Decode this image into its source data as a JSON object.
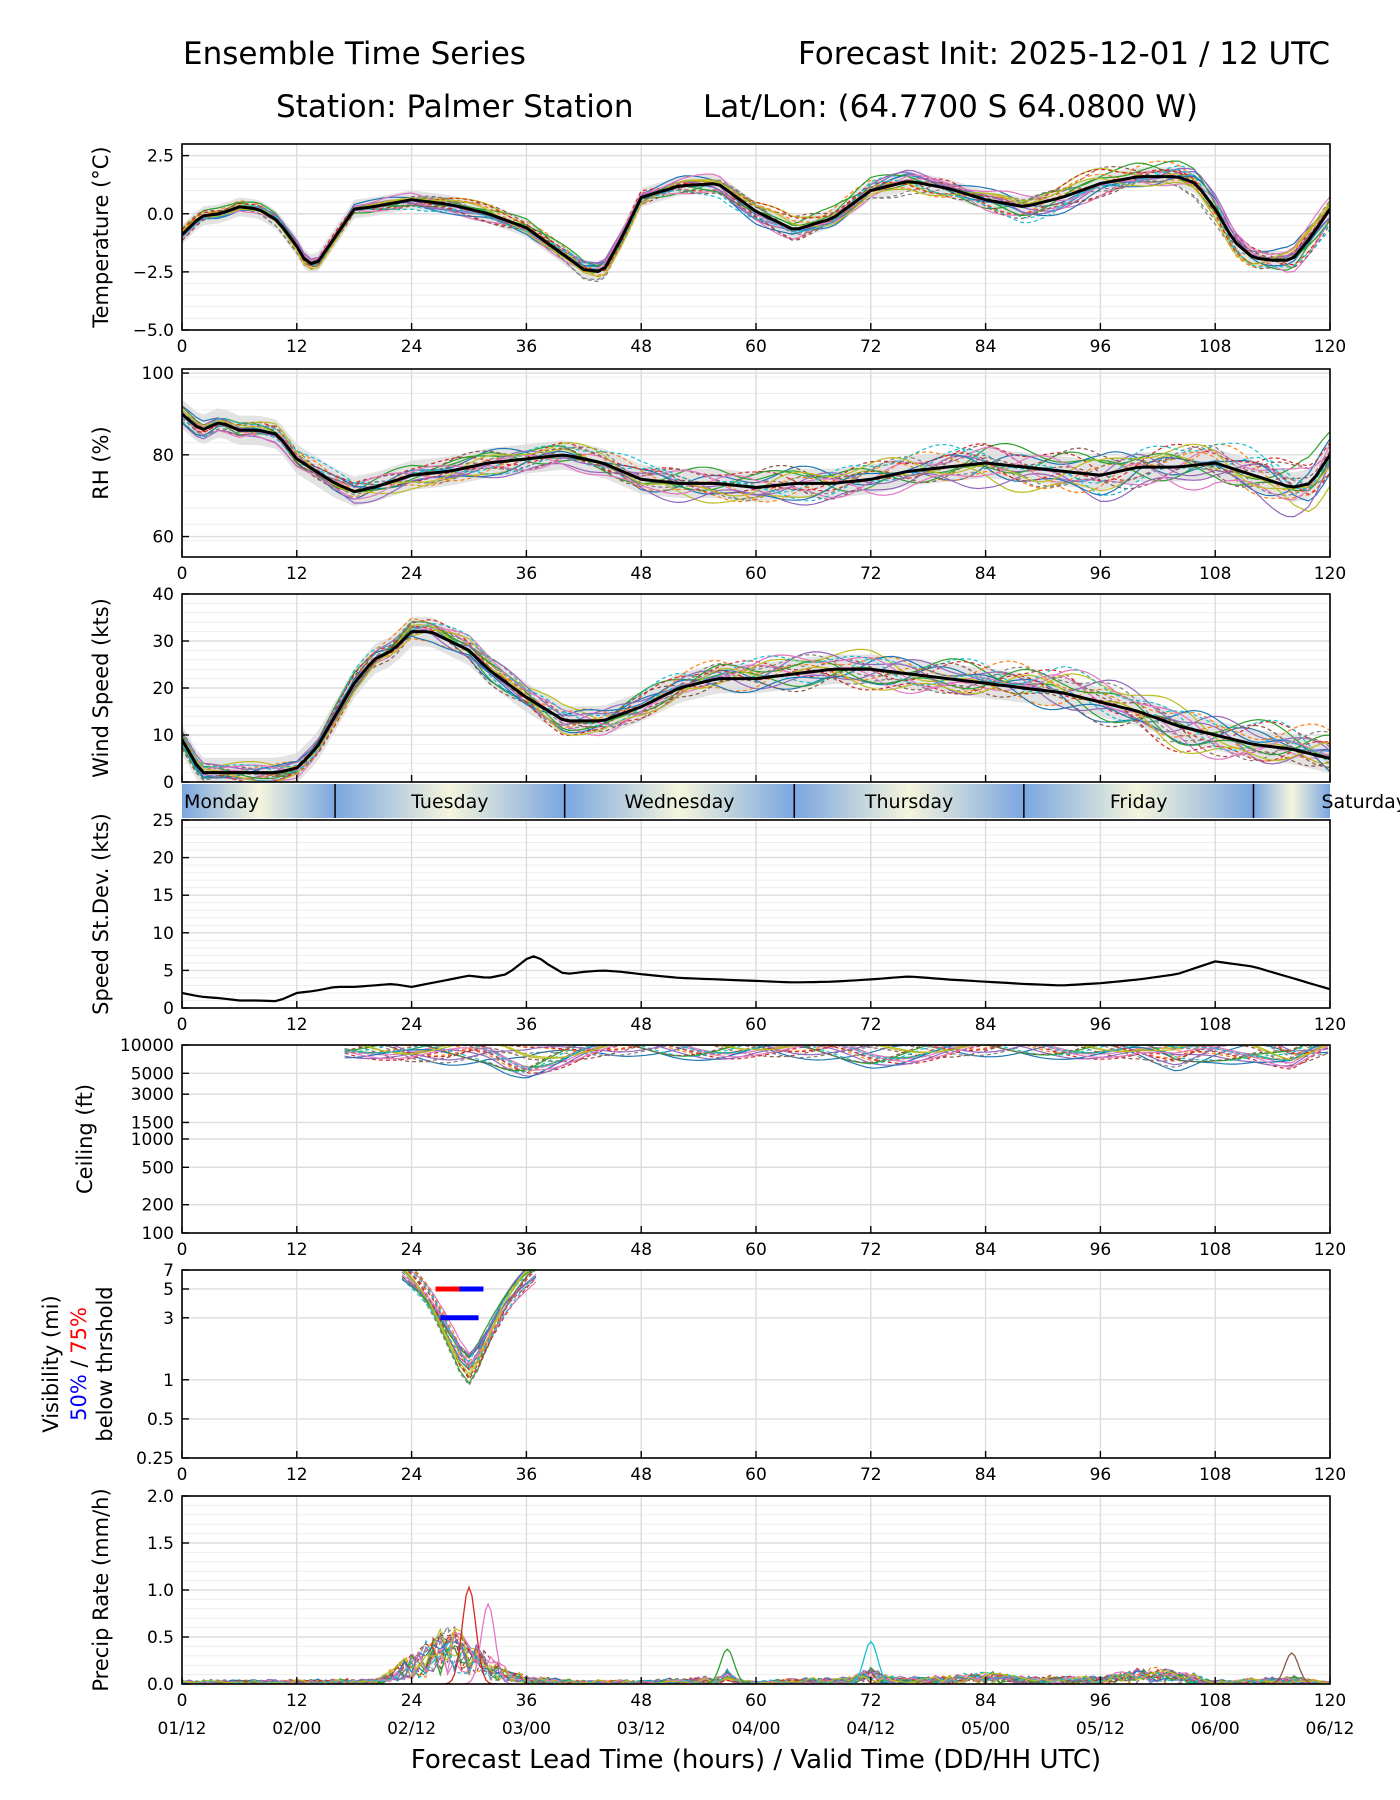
{
  "header": {
    "title_left": "Ensemble Time Series",
    "title_right": "Forecast Init: 2025-12-01 / 12 UTC",
    "station": "Station: Palmer Station",
    "latlon": "Lat/Lon: (64.7700 S 64.0800 W)"
  },
  "xaxis": {
    "label": "Forecast Lead Time (hours) / Valid Time (DD/HH UTC)",
    "lead_ticks": [
      "0",
      "12",
      "24",
      "36",
      "48",
      "60",
      "72",
      "84",
      "96",
      "108",
      "120"
    ],
    "valid_ticks": [
      "01/12",
      "02/00",
      "02/12",
      "03/00",
      "03/12",
      "04/00",
      "04/12",
      "05/00",
      "05/12",
      "06/00",
      "06/12"
    ]
  },
  "day_band": {
    "days": [
      {
        "label": "Monday",
        "start_h": 0,
        "end_h": 16
      },
      {
        "label": "Tuesday",
        "start_h": 16,
        "end_h": 40
      },
      {
        "label": "Wednesday",
        "start_h": 40,
        "end_h": 64
      },
      {
        "label": "Thursday",
        "start_h": 64,
        "end_h": 88
      },
      {
        "label": "Friday",
        "start_h": 88,
        "end_h": 112
      },
      {
        "label": "Saturday",
        "start_h": 112,
        "end_h": 120
      }
    ]
  },
  "vis_label": {
    "line1": "Visibility (mi)",
    "pct50": "50%",
    "sep": " / ",
    "pct75": "75%",
    "line3": "below thrshold"
  },
  "colors": {
    "mean": "#000000",
    "spread": "#d9d9d9",
    "members": [
      "#1f77b4",
      "#ff7f0e",
      "#2ca02c",
      "#d62728",
      "#9467bd",
      "#8c564b",
      "#e377c2",
      "#7f7f7f",
      "#bcbd22",
      "#17becf"
    ],
    "day_blue": "#7aa6e0",
    "day_cream": "#f5f5dc",
    "vis50": "#0000ff",
    "vis75": "#ff0000"
  },
  "chart_data": [
    {
      "type": "line",
      "panel": "temperature",
      "ylabel": "Temperature (°C)",
      "ylim": [
        -5.0,
        3.0
      ],
      "yticks": [
        "2.5",
        "0.0",
        "−2.5",
        "−5.0"
      ],
      "ytick_values": [
        2.5,
        0.0,
        -2.5,
        -5.0
      ],
      "scale": "linear",
      "has_spread": true,
      "n_members": 20,
      "mean_width": 3,
      "x": [
        0,
        2,
        4,
        6,
        8,
        10,
        12,
        13,
        14,
        16,
        18,
        20,
        24,
        28,
        32,
        36,
        40,
        42,
        44,
        46,
        48,
        52,
        56,
        60,
        64,
        68,
        72,
        76,
        80,
        84,
        88,
        92,
        96,
        100,
        104,
        106,
        108,
        110,
        112,
        114,
        116,
        118,
        120
      ],
      "mean": [
        -0.9,
        -0.1,
        0.0,
        0.3,
        0.2,
        -0.3,
        -1.4,
        -2.1,
        -2.2,
        -1.0,
        0.2,
        0.3,
        0.6,
        0.4,
        0.0,
        -0.6,
        -1.8,
        -2.4,
        -2.5,
        -1.0,
        0.7,
        1.2,
        1.3,
        0.1,
        -0.7,
        -0.2,
        1.0,
        1.4,
        1.1,
        0.6,
        0.3,
        0.7,
        1.3,
        1.6,
        1.6,
        1.3,
        0.2,
        -1.2,
        -1.9,
        -2.0,
        -2.0,
        -1.0,
        0.2
      ],
      "member_noise": 0.45
    },
    {
      "type": "line",
      "panel": "rh",
      "ylabel": "RH (%)",
      "ylim": [
        55,
        101
      ],
      "yticks": [
        "100",
        "80",
        "60"
      ],
      "ytick_values": [
        100,
        80,
        60
      ],
      "scale": "linear",
      "has_spread": true,
      "n_members": 20,
      "mean_width": 3,
      "x": [
        0,
        2,
        4,
        6,
        8,
        10,
        12,
        14,
        16,
        18,
        20,
        24,
        28,
        32,
        36,
        40,
        44,
        48,
        52,
        56,
        60,
        64,
        68,
        72,
        76,
        80,
        84,
        88,
        92,
        96,
        100,
        104,
        108,
        112,
        116,
        118,
        120
      ],
      "mean": [
        90,
        86,
        88,
        86,
        86,
        85,
        79,
        76,
        73,
        71,
        72,
        75,
        76,
        78,
        79,
        80,
        78,
        74,
        73,
        73,
        72,
        73,
        73,
        74,
        76,
        77,
        78,
        77,
        76,
        75,
        77,
        77,
        78,
        75,
        72,
        73,
        80
      ],
      "member_noise": 4.0
    },
    {
      "type": "line",
      "panel": "wind",
      "ylabel": "Wind Speed (kts)",
      "ylim": [
        0,
        40
      ],
      "yticks": [
        "40",
        "30",
        "20",
        "10",
        "0"
      ],
      "ytick_values": [
        40,
        30,
        20,
        10,
        0
      ],
      "scale": "linear",
      "has_spread": true,
      "n_members": 20,
      "mean_width": 3,
      "x": [
        0,
        2,
        4,
        6,
        8,
        10,
        12,
        14,
        16,
        18,
        20,
        22,
        24,
        26,
        28,
        30,
        32,
        36,
        40,
        44,
        48,
        52,
        56,
        60,
        64,
        68,
        72,
        76,
        80,
        84,
        88,
        92,
        96,
        100,
        104,
        108,
        112,
        116,
        120
      ],
      "mean": [
        9,
        2,
        2,
        2,
        2,
        2,
        3,
        7,
        14,
        21,
        26,
        28,
        32,
        32,
        30,
        28,
        24,
        18,
        13,
        13,
        16,
        20,
        22,
        22,
        23,
        24,
        24,
        23,
        22,
        21,
        20,
        19,
        17,
        15,
        12,
        10,
        8,
        7,
        5
      ],
      "member_noise": 3.5
    },
    {
      "type": "line",
      "panel": "speed_stdev",
      "ylabel": "Speed St.Dev. (kts)",
      "ylim": [
        0,
        25
      ],
      "yticks": [
        "25",
        "20",
        "15",
        "10",
        "5",
        "0"
      ],
      "ytick_values": [
        25,
        20,
        15,
        10,
        5,
        0
      ],
      "scale": "linear",
      "has_spread": false,
      "n_members": 0,
      "mean_width": 2.2,
      "x": [
        0,
        2,
        4,
        6,
        8,
        10,
        12,
        14,
        16,
        18,
        20,
        22,
        24,
        26,
        28,
        30,
        32,
        34,
        36,
        37,
        38,
        40,
        42,
        44,
        46,
        48,
        52,
        56,
        60,
        64,
        68,
        72,
        76,
        80,
        84,
        88,
        92,
        96,
        100,
        104,
        108,
        112,
        116,
        120
      ],
      "mean": [
        2,
        1.5,
        1.3,
        1,
        1,
        0.9,
        2,
        2.3,
        2.8,
        2.8,
        3,
        3.2,
        2.8,
        3.3,
        3.8,
        4.3,
        4,
        4.5,
        6.5,
        7,
        6,
        4.5,
        4.8,
        5,
        4.8,
        4.5,
        4,
        3.8,
        3.6,
        3.4,
        3.5,
        3.8,
        4.2,
        3.8,
        3.5,
        3.2,
        3.0,
        3.3,
        3.8,
        4.5,
        6.2,
        5.5,
        4,
        2.5
      ],
      "member_noise": 0
    },
    {
      "type": "line",
      "panel": "ceiling",
      "ylabel": "Ceiling (ft)",
      "ylim": [
        100,
        10000
      ],
      "yticks": [
        "10000",
        "5000",
        "3000",
        "1500",
        "1000",
        "500",
        "200",
        "100"
      ],
      "ytick_values": [
        10000,
        5000,
        3000,
        1500,
        1000,
        500,
        200,
        100
      ],
      "scale": "log",
      "has_spread": false,
      "n_members": 20,
      "mean_width": 0,
      "x": [
        17,
        20,
        24,
        28,
        32,
        34,
        36,
        38,
        40,
        42,
        44,
        48,
        52,
        56,
        60,
        64,
        68,
        72,
        76,
        80,
        84,
        88,
        92,
        96,
        100,
        104,
        108,
        112,
        116,
        119.8
      ],
      "mean": [
        10000,
        9500,
        8500,
        8000,
        8000,
        7000,
        6500,
        7200,
        8000,
        9000,
        9500,
        9800,
        9500,
        9500,
        9700,
        9200,
        8800,
        8000,
        8600,
        9400,
        9600,
        9800,
        9700,
        9500,
        9000,
        7000,
        8500,
        9000,
        7500,
        10000
      ],
      "member_noise": 2500
    },
    {
      "type": "line",
      "panel": "visibility",
      "ylabel": "Visibility (mi)",
      "ylim": [
        0.25,
        7
      ],
      "yticks": [
        "7",
        "5",
        "3",
        "1",
        "0.5",
        "0.25"
      ],
      "ytick_values": [
        7,
        5,
        3,
        1,
        0.5,
        0.25
      ],
      "scale": "log",
      "has_spread": false,
      "n_members": 20,
      "mean_width": 0,
      "x": [
        23,
        24,
        25,
        26,
        27,
        28,
        29,
        30,
        31,
        32,
        33,
        34,
        35,
        36,
        37
      ],
      "mean": [
        7,
        6,
        5,
        4,
        3,
        2.2,
        1.6,
        1.3,
        1.6,
        2.2,
        3,
        4,
        5,
        6,
        7
      ],
      "threshold_50": {
        "value": 3,
        "x_start": 27,
        "x_end": 31
      },
      "threshold_75": {
        "value": 5,
        "x_start": 26.5,
        "x_end": 31.5
      },
      "member_noise": 0.5
    },
    {
      "type": "line",
      "panel": "precip",
      "ylabel": "Precip Rate (mm/h)",
      "ylim": [
        0,
        2.0
      ],
      "yticks": [
        "2.0",
        "1.5",
        "1.0",
        "0.5",
        "0.0"
      ],
      "ytick_values": [
        2.0,
        1.5,
        1.0,
        0.5,
        0.0
      ],
      "scale": "linear",
      "has_spread": false,
      "n_members": 20,
      "mean_width": 0,
      "x": [
        0,
        20,
        22,
        24,
        26,
        28,
        29,
        30,
        32,
        34,
        36,
        40,
        48,
        56,
        57,
        58,
        60,
        70,
        72,
        74,
        80,
        84,
        88,
        96,
        100,
        104,
        108,
        116,
        120
      ],
      "mean": [
        0.02,
        0.03,
        0.1,
        0.2,
        0.3,
        0.4,
        0.35,
        0.3,
        0.2,
        0.1,
        0.05,
        0.03,
        0.02,
        0.05,
        0.1,
        0.03,
        0.02,
        0.05,
        0.1,
        0.05,
        0.05,
        0.08,
        0.05,
        0.05,
        0.1,
        0.1,
        0.02,
        0.05,
        0.01
      ],
      "peaks": [
        {
          "x": 30,
          "v": 1.03
        },
        {
          "x": 32,
          "v": 0.85
        },
        {
          "x": 72,
          "v": 0.45
        },
        {
          "x": 57,
          "v": 0.37
        },
        {
          "x": 116,
          "v": 0.33
        }
      ],
      "member_noise": 0.08
    }
  ]
}
